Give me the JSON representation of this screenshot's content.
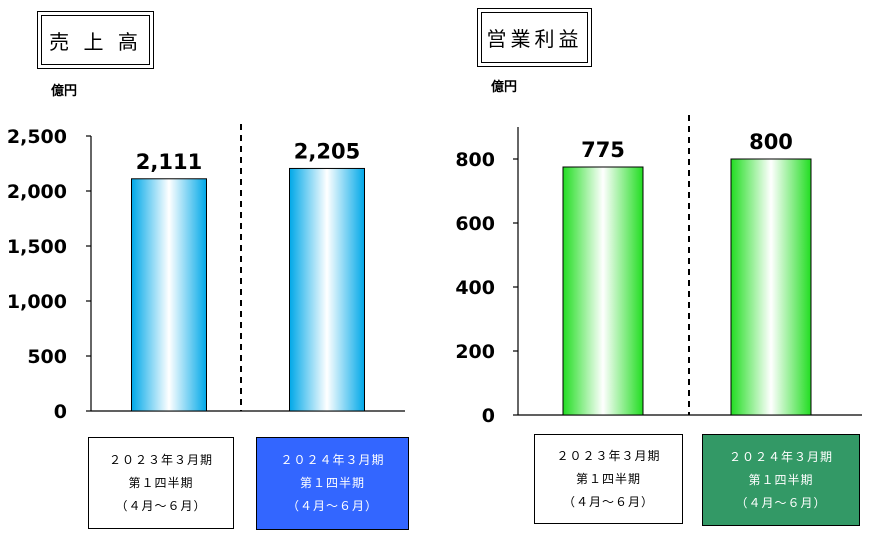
{
  "chart_data": [
    {
      "type": "bar",
      "title": "売 上 高",
      "ylabel": "億円",
      "ylim": [
        0,
        2500
      ],
      "yticks": [
        "0",
        "500",
        "1,000",
        "1,500",
        "2,000",
        "2,500"
      ],
      "yticks_values": [
        0,
        500,
        1000,
        1500,
        2000,
        2500
      ],
      "categories": [
        {
          "line1": "２０２３年３月期",
          "line2": "第１四半期",
          "line3": "（４月～６月）"
        },
        {
          "line1": "２０２４年３月期",
          "line2": "第１四半期",
          "line3": "（４月～６月）"
        }
      ],
      "values": [
        2111,
        2205
      ],
      "value_labels": [
        "2,111",
        "2,205"
      ],
      "bar_color": "#00a8e8",
      "highlight_box_color": "#3366ff"
    },
    {
      "type": "bar",
      "title": "営業利益",
      "ylabel": "億円",
      "ylim": [
        0,
        900
      ],
      "yticks": [
        "0",
        "200",
        "400",
        "600",
        "800"
      ],
      "yticks_values": [
        0,
        200,
        400,
        600,
        800
      ],
      "categories": [
        {
          "line1": "２０２３年３月期",
          "line2": "第１四半期",
          "line3": "（４月～６月）"
        },
        {
          "line1": "２０２４年３月期",
          "line2": "第１四半期",
          "line3": "（４月～６月）"
        }
      ],
      "values": [
        775,
        800
      ],
      "value_labels": [
        "775",
        "800"
      ],
      "bar_color": "#22dd22",
      "highlight_box_color": "#339966"
    }
  ]
}
